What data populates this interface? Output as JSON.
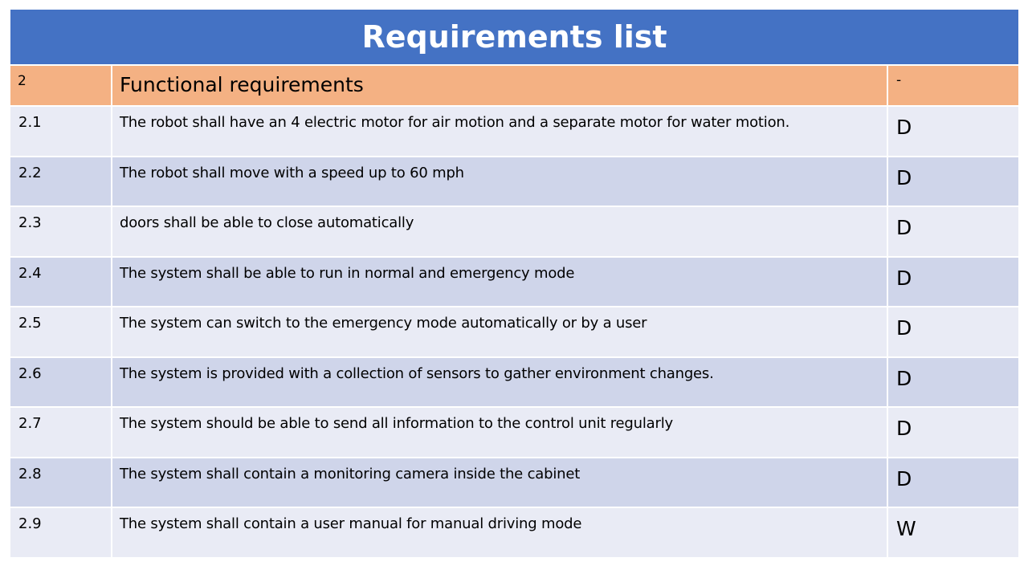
{
  "title": "Requirements list",
  "section": {
    "id": "2",
    "title": "Functional requirements",
    "priority": "-"
  },
  "requirements": [
    {
      "id": "2.1",
      "text": "The robot shall have an 4 electric motor for air motion and a separate motor for water motion.",
      "priority": "D"
    },
    {
      "id": "2.2",
      "text": "The robot shall move with a speed up to 60 mph",
      "priority": "D"
    },
    {
      "id": "2.3",
      "text": "doors shall be able to close automatically",
      "priority": "D"
    },
    {
      "id": "2.4",
      "text": "The system shall be able to run in normal and emergency mode",
      "priority": "D"
    },
    {
      "id": "2.5",
      "text": "The system can switch to the emergency mode automatically or by a user",
      "priority": "D"
    },
    {
      "id": "2.6",
      "text": "The system is provided with a collection of sensors to gather environment changes.",
      "priority": "D"
    },
    {
      "id": "2.7",
      "text": "The system should be able to send all information to the control unit regularly",
      "priority": "D"
    },
    {
      "id": "2.8",
      "text": "The system shall contain a monitoring camera inside the cabinet",
      "priority": "D"
    },
    {
      "id": "2.9",
      "text": "The system shall contain a user manual for manual driving mode",
      "priority": "W"
    }
  ],
  "colors": {
    "title_bar": "#4472c4",
    "section_header": "#f4b183",
    "row_light": "#e9ebf5",
    "row_dark": "#cfd5ea"
  }
}
